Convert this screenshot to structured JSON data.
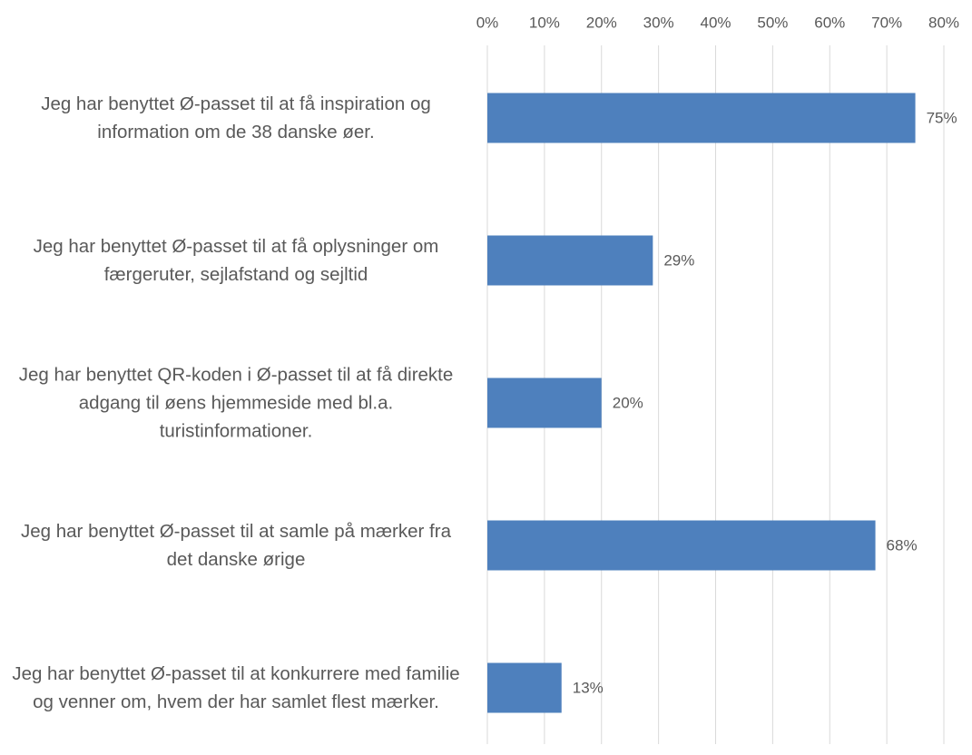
{
  "chart_data": {
    "type": "barh",
    "categories": [
      "Jeg har benyttet Ø-passet til at få inspiration og information om de 38 danske øer.",
      "Jeg har benyttet Ø-passet til at få oplysninger om færgeruter, sejlafstand og sejltid",
      "Jeg har benyttet QR-koden i Ø-passet til at få direkte adgang til øens hjemmeside med bl.a. turistinformationer.",
      "Jeg har benyttet Ø-passet til at samle på mærker fra det danske ørige",
      "Jeg har benyttet Ø-passet til at konkurrere med familie og venner om, hvem der har samlet flest mærker."
    ],
    "values": [
      75,
      29,
      20,
      68,
      13
    ],
    "value_labels": [
      "75%",
      "29%",
      "20%",
      "68%",
      "13%"
    ],
    "color": "#4e80bd",
    "xlim": [
      0,
      80
    ],
    "xticks": [
      {
        "value": 0,
        "label": "0%"
      },
      {
        "value": 10,
        "label": "10%"
      },
      {
        "value": 20,
        "label": "20%"
      },
      {
        "value": 30,
        "label": "30%"
      },
      {
        "value": 40,
        "label": "40%"
      },
      {
        "value": 50,
        "label": "50%"
      },
      {
        "value": 60,
        "label": "60%"
      },
      {
        "value": 70,
        "label": "70%"
      },
      {
        "value": 80,
        "label": "80%"
      }
    ],
    "grid": true
  }
}
